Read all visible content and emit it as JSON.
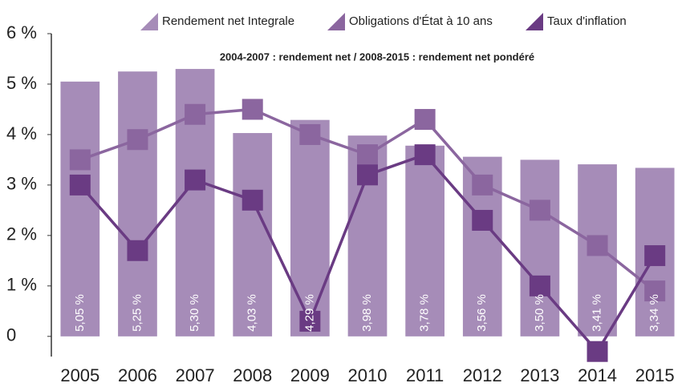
{
  "chart_data": {
    "type": "combo",
    "annotation": "2004-2007 : rendement net / 2008-2015 : rendement net pondéré",
    "categories": [
      "2005",
      "2006",
      "2007",
      "2008",
      "2009",
      "2010",
      "2011",
      "2012",
      "2013",
      "2014",
      "2015"
    ],
    "series": [
      {
        "name": "Rendement net Integrale",
        "type": "bar",
        "color": "#a68cb8",
        "values": [
          5.05,
          5.25,
          5.3,
          4.03,
          4.29,
          3.98,
          3.78,
          3.56,
          3.5,
          3.41,
          3.34
        ],
        "value_labels": [
          "5,05 %",
          "5,25 %",
          "5,30 %",
          "4,03 %",
          "4,29 %",
          "3,98 %",
          "3,78 %",
          "3,56 %",
          "3,50 %",
          "3,41 %",
          "3,34 %"
        ]
      },
      {
        "name": "Obligations d'État à 10 ans",
        "type": "line",
        "color": "#8b669f",
        "values": [
          3.5,
          3.9,
          4.4,
          4.5,
          4.0,
          3.6,
          4.3,
          3.0,
          2.5,
          1.8,
          0.9
        ]
      },
      {
        "name": "Taux d'inflation",
        "type": "line",
        "color": "#6a3b83",
        "values": [
          3.0,
          1.7,
          3.1,
          2.7,
          0.3,
          3.2,
          3.6,
          2.3,
          1.0,
          -0.3,
          1.6
        ]
      }
    ],
    "ylim": [
      -0.4,
      6
    ],
    "yticks": [
      0,
      {
        "value": 1,
        "label": "1 %"
      },
      {
        "value": 2,
        "label": "2 %"
      },
      {
        "value": 3,
        "label": "3 %"
      },
      {
        "value": 4,
        "label": "4 %"
      },
      {
        "value": 5,
        "label": "5 %"
      },
      {
        "value": 6,
        "label": "6 %"
      }
    ]
  }
}
